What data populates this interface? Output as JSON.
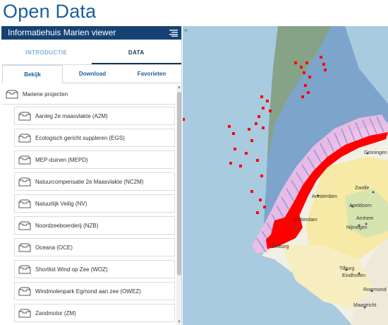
{
  "page": {
    "title": "Open Data"
  },
  "panel": {
    "header_title": "Informatiehuis Marien viewer"
  },
  "main_tabs": [
    {
      "label": "INTRODUCTIE",
      "active": false
    },
    {
      "label": "DATA",
      "active": true
    }
  ],
  "sub_tabs": [
    {
      "label": "Bekijk",
      "active": true
    },
    {
      "label": "Download",
      "active": false
    },
    {
      "label": "Favorieten",
      "active": false
    }
  ],
  "list": {
    "group_label": "Mariene projecten",
    "items": [
      "Aanleg 2e maasvlakte (A2M)",
      "Ecologisch gericht suppleren (EGS)",
      "MEP-duinen (MEPD)",
      "Natuurcompensatie 2e Maasvlakte (NC2M)",
      "Natuurlijk Veilig (NV)",
      "Noordzeeboerderij (NZB)",
      "Oceana (OCE)",
      "Shortlist Wind op Zee (WOZ)",
      "Windmolenpark Egmond aan zee (OWEZ)",
      "Zandmotor (ZM)"
    ]
  },
  "map": {
    "places": [
      "Groningen",
      "Zwolle",
      "Apeldoorn",
      "Arnhem",
      "Nijmegen",
      "Amsterdam",
      "Rotterdam",
      "Tilburg",
      "Eindhoven",
      "Roermond",
      "Maastricht",
      "Delburg"
    ]
  },
  "colors": {
    "header": "#154273",
    "title": "#1b5e9c",
    "data_red": "#ff0000",
    "zone_pink": "#f4bde8"
  }
}
